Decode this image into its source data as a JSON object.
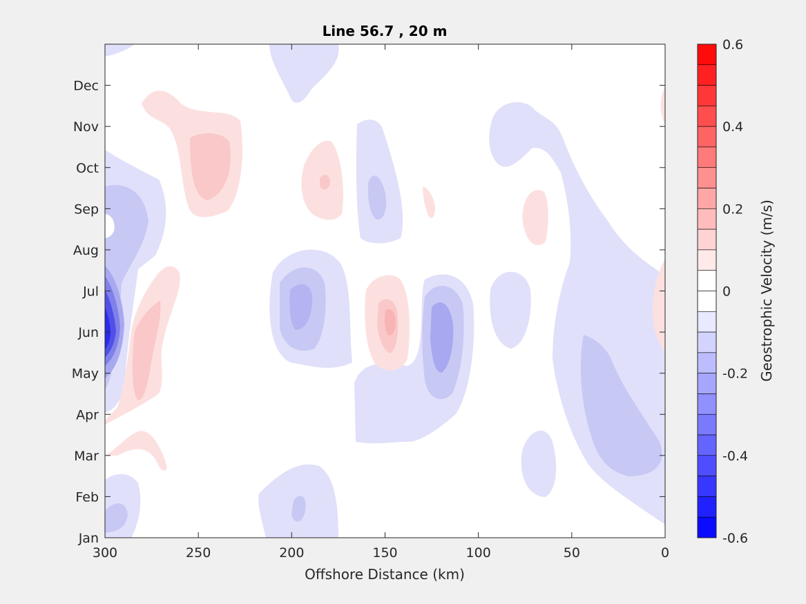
{
  "chart_data": {
    "type": "heatmap",
    "subtype": "filled-contour",
    "title": "Line 56.7 , 20 m",
    "xlabel": "Offshore Distance (km)",
    "ylabel": "",
    "x_reversed": true,
    "xlim": [
      300,
      0
    ],
    "x_ticks": [
      300,
      250,
      200,
      150,
      100,
      50,
      0
    ],
    "y_ticks": [
      "Jan",
      "Feb",
      "Mar",
      "Apr",
      "May",
      "Jun",
      "Jul",
      "Aug",
      "Sep",
      "Oct",
      "Nov",
      "Dec"
    ],
    "colorbar": {
      "label": "Geostrophic Velocity (m/s)",
      "clim": [
        -0.6,
        0.6
      ],
      "step": 0.05,
      "ticks": [
        "0.6",
        "0.4",
        "0.2",
        "0",
        "-0.2",
        "-0.4",
        "-0.6"
      ],
      "tick_values": [
        0.6,
        0.4,
        0.2,
        0,
        -0.2,
        -0.4,
        -0.6
      ],
      "negative_color": "#0000ff",
      "positive_color": "#ff0000",
      "zero_color": "#ffffff"
    },
    "features": [
      {
        "sign": "negative",
        "x_center": 300,
        "month_center": 5.0,
        "peak_value": -0.55
      },
      {
        "sign": "negative",
        "x_center": 193,
        "month_center": 5.6,
        "peak_value": -0.2
      },
      {
        "sign": "negative",
        "x_center": 120,
        "month_center": 5.0,
        "peak_value": -0.25
      },
      {
        "sign": "positive",
        "x_center": 150,
        "month_center": 5.2,
        "peak_value": 0.15
      },
      {
        "sign": "positive",
        "x_center": 278,
        "month_center": 4.2,
        "peak_value": 0.15
      },
      {
        "sign": "positive",
        "x_center": 242,
        "month_center": 9.3,
        "peak_value": 0.1
      },
      {
        "sign": "positive",
        "x_center": 183,
        "month_center": 8.4,
        "peak_value": 0.1
      },
      {
        "sign": "negative",
        "x_center": 157,
        "month_center": 8.0,
        "peak_value": -0.1
      },
      {
        "sign": "negative",
        "x_center": 30,
        "month_center": 3.0,
        "peak_value": -0.1
      }
    ]
  }
}
